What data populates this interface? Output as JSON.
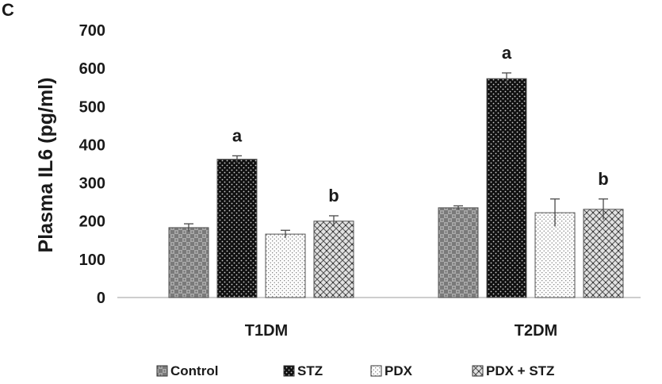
{
  "panel_label": "C",
  "chart_data": {
    "type": "bar",
    "title": "",
    "ylabel": "Plasma IL6 (pg/ml)",
    "xlabel": "",
    "ylim": [
      0,
      700
    ],
    "yticks": [
      0,
      100,
      200,
      300,
      400,
      500,
      600,
      700
    ],
    "grid": false,
    "legend_position": "bottom",
    "categories": [
      "T1DM",
      "T2DM"
    ],
    "series": [
      {
        "name": "Control",
        "pattern": "checker",
        "values": [
          183,
          235
        ],
        "errors": [
          10,
          5
        ],
        "annotations": [
          "",
          ""
        ]
      },
      {
        "name": "STZ",
        "pattern": "dots-dark",
        "values": [
          362,
          573
        ],
        "errors": [
          9,
          15
        ],
        "annotations": [
          "a",
          "a"
        ]
      },
      {
        "name": "PDX",
        "pattern": "dots-light",
        "values": [
          166,
          222
        ],
        "errors": [
          10,
          36
        ],
        "annotations": [
          "",
          ""
        ]
      },
      {
        "name": "PDX + STZ",
        "pattern": "crosshatch",
        "values": [
          200,
          231
        ],
        "errors": [
          14,
          27
        ],
        "annotations": [
          "b",
          "b"
        ]
      }
    ]
  }
}
